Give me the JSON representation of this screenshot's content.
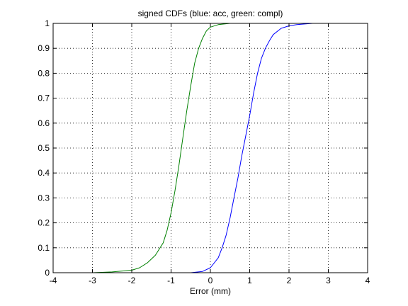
{
  "chart_data": {
    "type": "line",
    "title": "signed CDFs (blue: acc, green: compl)",
    "xlabel": "Error (mm)",
    "ylabel": "",
    "xlim": [
      -4,
      4
    ],
    "ylim": [
      0,
      1
    ],
    "x_ticks": [
      "-4",
      "-3",
      "-2",
      "-1",
      "0",
      "1",
      "2",
      "3",
      "4"
    ],
    "y_ticks": [
      "0",
      "0.1",
      "0.2",
      "0.3",
      "0.4",
      "0.5",
      "0.6",
      "0.7",
      "0.8",
      "0.9",
      "1"
    ],
    "grid": true,
    "grid_style": "dotted",
    "legend": "none",
    "series": [
      {
        "color": "#0000ff",
        "points": [
          [
            -1.2,
            0.0
          ],
          [
            -0.5,
            0.0
          ],
          [
            -0.2,
            0.005
          ],
          [
            0.0,
            0.02
          ],
          [
            0.2,
            0.06
          ],
          [
            0.3,
            0.1
          ],
          [
            0.4,
            0.15
          ],
          [
            0.5,
            0.22
          ],
          [
            0.6,
            0.3
          ],
          [
            0.7,
            0.38
          ],
          [
            0.8,
            0.47
          ],
          [
            0.9,
            0.55
          ],
          [
            1.0,
            0.63
          ],
          [
            1.1,
            0.72
          ],
          [
            1.2,
            0.8
          ],
          [
            1.3,
            0.86
          ],
          [
            1.4,
            0.9
          ],
          [
            1.5,
            0.93
          ],
          [
            1.6,
            0.955
          ],
          [
            1.8,
            0.98
          ],
          [
            2.0,
            0.99
          ],
          [
            2.2,
            0.995
          ],
          [
            2.6,
            1.0
          ],
          [
            4.0,
            1.0
          ]
        ]
      },
      {
        "color": "#008000",
        "points": [
          [
            -4.0,
            0.0
          ],
          [
            -3.0,
            0.0
          ],
          [
            -2.5,
            0.003
          ],
          [
            -2.0,
            0.01
          ],
          [
            -1.8,
            0.02
          ],
          [
            -1.6,
            0.04
          ],
          [
            -1.4,
            0.07
          ],
          [
            -1.2,
            0.12
          ],
          [
            -1.1,
            0.17
          ],
          [
            -1.0,
            0.24
          ],
          [
            -0.9,
            0.33
          ],
          [
            -0.8,
            0.43
          ],
          [
            -0.7,
            0.54
          ],
          [
            -0.6,
            0.65
          ],
          [
            -0.5,
            0.75
          ],
          [
            -0.4,
            0.84
          ],
          [
            -0.3,
            0.9
          ],
          [
            -0.2,
            0.94
          ],
          [
            -0.1,
            0.97
          ],
          [
            0.0,
            0.985
          ],
          [
            0.2,
            0.995
          ],
          [
            0.5,
            1.0
          ],
          [
            0.8,
            1.0
          ]
        ]
      }
    ]
  }
}
